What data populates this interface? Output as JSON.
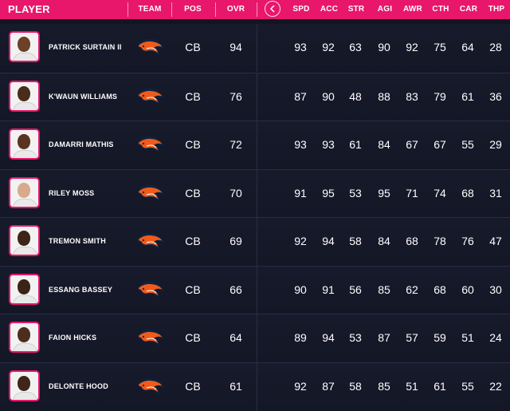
{
  "header": {
    "player": "PLAYER",
    "team": "TEAM",
    "pos": "POS",
    "ovr": "OVR",
    "stats": [
      "SPD",
      "ACC",
      "STR",
      "AGI",
      "AWR",
      "CTH",
      "CAR",
      "THP"
    ]
  },
  "colors": {
    "accent": "#e8176b",
    "row_bg": "#171a2a",
    "broncos_orange": "#f05a1a",
    "broncos_navy": "#0a2343"
  },
  "team_logo_icon": "broncos-logo-icon",
  "players": [
    {
      "name": "PATRICK SURTAIN II",
      "pos": "CB",
      "ovr": "94",
      "stats": [
        "93",
        "92",
        "63",
        "90",
        "92",
        "75",
        "64",
        "28"
      ],
      "skin": "#6b4128"
    },
    {
      "name": "K'WAUN WILLIAMS",
      "pos": "CB",
      "ovr": "76",
      "stats": [
        "87",
        "90",
        "48",
        "88",
        "83",
        "79",
        "61",
        "36"
      ],
      "skin": "#4a2c1b"
    },
    {
      "name": "DAMARRI MATHIS",
      "pos": "CB",
      "ovr": "72",
      "stats": [
        "93",
        "93",
        "61",
        "84",
        "67",
        "67",
        "55",
        "29"
      ],
      "skin": "#5a3420"
    },
    {
      "name": "RILEY MOSS",
      "pos": "CB",
      "ovr": "70",
      "stats": [
        "91",
        "95",
        "53",
        "95",
        "71",
        "74",
        "68",
        "31"
      ],
      "skin": "#d9a98c"
    },
    {
      "name": "TREMON SMITH",
      "pos": "CB",
      "ovr": "69",
      "stats": [
        "92",
        "94",
        "58",
        "84",
        "68",
        "78",
        "76",
        "47"
      ],
      "skin": "#3d2416"
    },
    {
      "name": "ESSANG BASSEY",
      "pos": "CB",
      "ovr": "66",
      "stats": [
        "90",
        "91",
        "56",
        "85",
        "62",
        "68",
        "60",
        "30"
      ],
      "skin": "#3b2316"
    },
    {
      "name": "FAION HICKS",
      "pos": "CB",
      "ovr": "64",
      "stats": [
        "89",
        "94",
        "53",
        "87",
        "57",
        "59",
        "51",
        "24"
      ],
      "skin": "#4d2e1c"
    },
    {
      "name": "DELONTE HOOD",
      "pos": "CB",
      "ovr": "61",
      "stats": [
        "92",
        "87",
        "58",
        "85",
        "51",
        "61",
        "55",
        "22"
      ],
      "skin": "#3f2618"
    }
  ]
}
